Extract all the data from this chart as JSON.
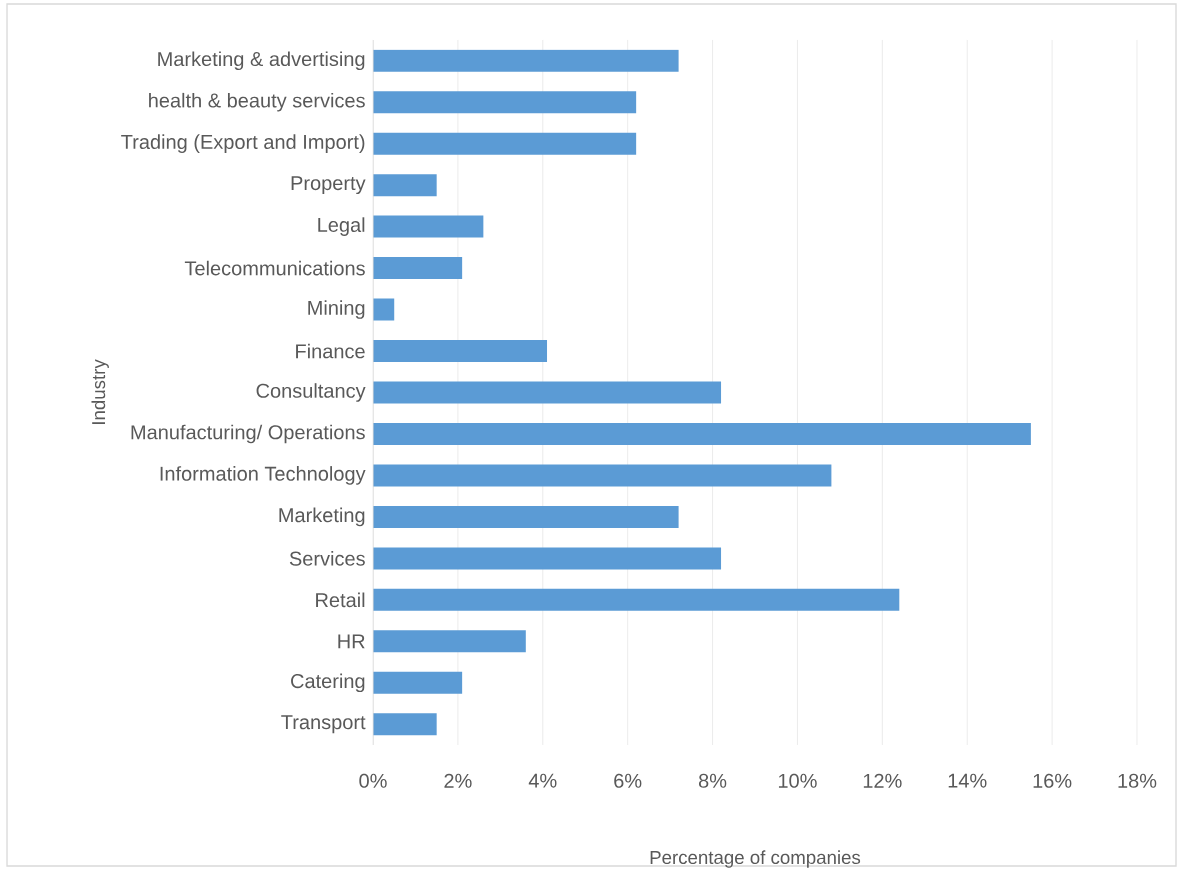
{
  "chart_data": {
    "type": "bar",
    "orientation": "horizontal",
    "xlabel": "Percentage of companies",
    "ylabel": "Industry",
    "categories": [
      "Marketing & advertising",
      "health & beauty services",
      "Trading (Export and Import)",
      "Property",
      "Legal",
      "Telecommunications",
      "Mining",
      "Finance",
      "Consultancy",
      "Manufacturing/ Operations",
      "Information Technology",
      "Marketing",
      "Services",
      "Retail",
      "HR",
      "Catering",
      "Transport"
    ],
    "values": [
      7.2,
      6.2,
      6.2,
      1.5,
      2.6,
      2.1,
      0.5,
      4.1,
      8.2,
      15.5,
      10.8,
      7.2,
      8.2,
      12.4,
      3.6,
      2.1,
      1.5
    ],
    "color": "#5b9bd5",
    "xlim": [
      0,
      18
    ],
    "xticks": [
      {
        "value": 0,
        "label": "0%"
      },
      {
        "value": 2,
        "label": "2%"
      },
      {
        "value": 4,
        "label": "4%"
      },
      {
        "value": 6,
        "label": "6%"
      },
      {
        "value": 8,
        "label": "8%"
      },
      {
        "value": 10,
        "label": "10%"
      },
      {
        "value": 12,
        "label": "12%"
      },
      {
        "value": 14,
        "label": "14%"
      },
      {
        "value": 16,
        "label": "16%"
      },
      {
        "value": 18,
        "label": "18%"
      }
    ],
    "grid": "x"
  }
}
